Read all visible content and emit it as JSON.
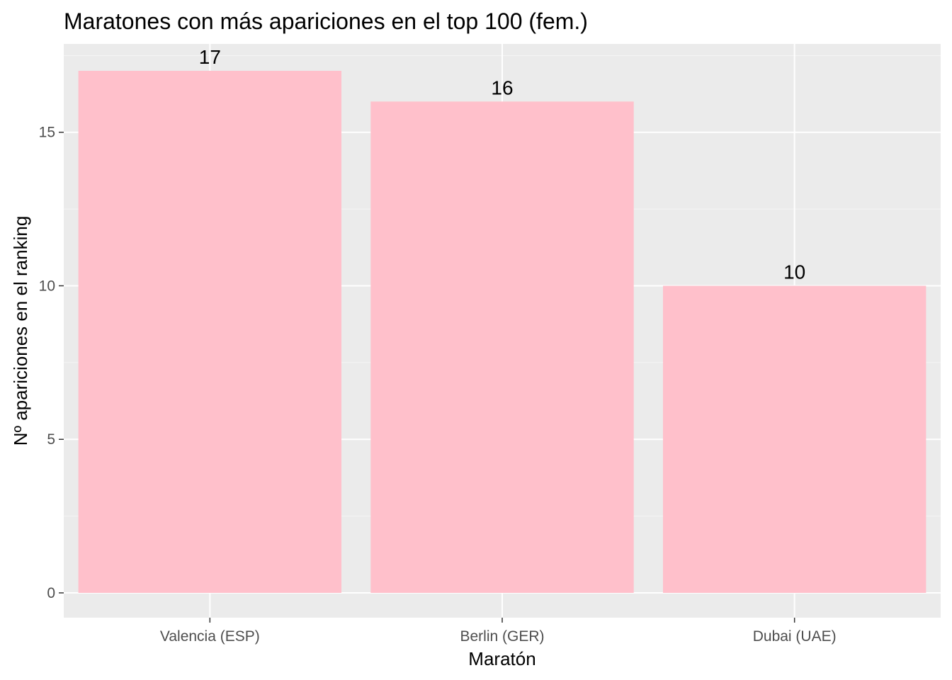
{
  "chart_data": {
    "type": "bar",
    "title": "Maratones con más apariciones en el top 100 (fem.)",
    "xlabel": "Maratón",
    "ylabel": "Nº apariciones en el ranking",
    "categories": [
      "Valencia (ESP)",
      "Berlin (GER)",
      "Dubai (UAE)"
    ],
    "values": [
      17,
      16,
      10
    ],
    "data_labels": [
      "17",
      "16",
      "10"
    ],
    "ylim": [
      0,
      17.85
    ],
    "y_ticks": [
      0,
      5,
      10,
      15
    ],
    "y_tick_labels": [
      "0",
      "5",
      "10",
      "15"
    ],
    "grid": true,
    "legend": "none",
    "colors": {
      "bar": "#ffc0cb",
      "panel_background": "#ebebeb",
      "grid_major": "#ffffff",
      "grid_minor": "#f5f5f5",
      "tick_text": "#4d4d4d",
      "tick_mark": "#333333"
    }
  }
}
